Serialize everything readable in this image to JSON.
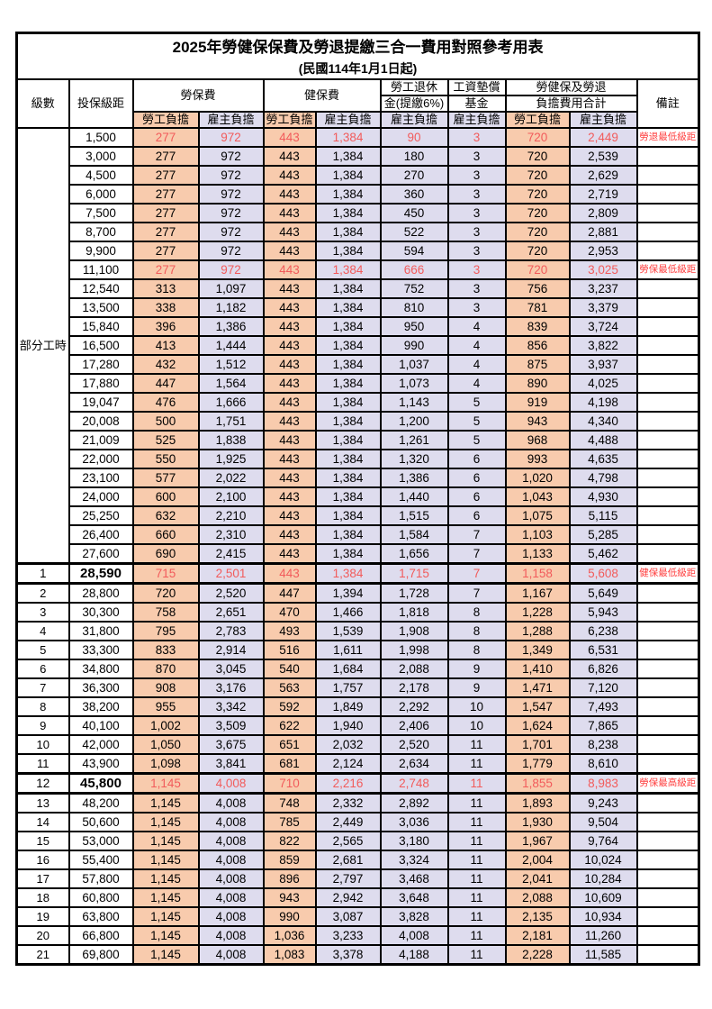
{
  "title": "2025年勞健保保費及勞退提繳三合一費用對照參考用表",
  "subtitle": "(民國114年1月1日起)",
  "header": {
    "level": "級數",
    "bracket": "投保級距",
    "labor_fee": "勞保費",
    "health_fee": "健保費",
    "pension_line1": "勞工退休",
    "pension_line2": "金(提繳6%)",
    "wage_fund_line1": "工資墊償",
    "wage_fund_line2": "基金",
    "total_line1": "勞健保及勞退",
    "total_line2": "負擔費用合計",
    "remark": "備註",
    "employee_share": "勞工負擔",
    "employer_share": "雇主負擔"
  },
  "part_time_label": "部分工時",
  "part_time_span": 23,
  "colors": {
    "employee_bg": "#F8CBAD",
    "employer_bg": "#DEDCEE",
    "value_red": "#F25B5B",
    "remark_red": "#FF4040",
    "text": "#000000"
  },
  "chart_data": {
    "type": "table",
    "title": "2025年勞健保保費及勞退提繳三合一費用對照參考用表",
    "columns": [
      "級數",
      "投保級距",
      "勞保費-勞工負擔",
      "勞保費-雇主負擔",
      "健保費-勞工負擔",
      "健保費-雇主負擔",
      "勞工退休金(提繳6%)-雇主負擔",
      "工資墊償基金-雇主負擔",
      "合計-勞工負擔",
      "合計-雇主負擔",
      "備註"
    ]
  },
  "rows": [
    {
      "level": "",
      "bracket": "1,500",
      "values": [
        "277",
        "972",
        "443",
        "1,384",
        "90",
        "3",
        "720",
        "2,449"
      ],
      "remark": "勞退最低級距",
      "red": true
    },
    {
      "level": "",
      "bracket": "3,000",
      "values": [
        "277",
        "972",
        "443",
        "1,384",
        "180",
        "3",
        "720",
        "2,539"
      ],
      "remark": ""
    },
    {
      "level": "",
      "bracket": "4,500",
      "values": [
        "277",
        "972",
        "443",
        "1,384",
        "270",
        "3",
        "720",
        "2,629"
      ],
      "remark": ""
    },
    {
      "level": "",
      "bracket": "6,000",
      "values": [
        "277",
        "972",
        "443",
        "1,384",
        "360",
        "3",
        "720",
        "2,719"
      ],
      "remark": ""
    },
    {
      "level": "",
      "bracket": "7,500",
      "values": [
        "277",
        "972",
        "443",
        "1,384",
        "450",
        "3",
        "720",
        "2,809"
      ],
      "remark": ""
    },
    {
      "level": "",
      "bracket": "8,700",
      "values": [
        "277",
        "972",
        "443",
        "1,384",
        "522",
        "3",
        "720",
        "2,881"
      ],
      "remark": ""
    },
    {
      "level": "",
      "bracket": "9,900",
      "values": [
        "277",
        "972",
        "443",
        "1,384",
        "594",
        "3",
        "720",
        "2,953"
      ],
      "remark": ""
    },
    {
      "level": "",
      "bracket": "11,100",
      "values": [
        "277",
        "972",
        "443",
        "1,384",
        "666",
        "3",
        "720",
        "3,025"
      ],
      "remark": "勞保最低級距",
      "red": true
    },
    {
      "level": "",
      "bracket": "12,540",
      "values": [
        "313",
        "1,097",
        "443",
        "1,384",
        "752",
        "3",
        "756",
        "3,237"
      ],
      "remark": ""
    },
    {
      "level": "",
      "bracket": "13,500",
      "values": [
        "338",
        "1,182",
        "443",
        "1,384",
        "810",
        "3",
        "781",
        "3,379"
      ],
      "remark": ""
    },
    {
      "level": "",
      "bracket": "15,840",
      "values": [
        "396",
        "1,386",
        "443",
        "1,384",
        "950",
        "4",
        "839",
        "3,724"
      ],
      "remark": ""
    },
    {
      "level": "",
      "bracket": "16,500",
      "values": [
        "413",
        "1,444",
        "443",
        "1,384",
        "990",
        "4",
        "856",
        "3,822"
      ],
      "remark": ""
    },
    {
      "level": "",
      "bracket": "17,280",
      "values": [
        "432",
        "1,512",
        "443",
        "1,384",
        "1,037",
        "4",
        "875",
        "3,937"
      ],
      "remark": ""
    },
    {
      "level": "",
      "bracket": "17,880",
      "values": [
        "447",
        "1,564",
        "443",
        "1,384",
        "1,073",
        "4",
        "890",
        "4,025"
      ],
      "remark": ""
    },
    {
      "level": "",
      "bracket": "19,047",
      "values": [
        "476",
        "1,666",
        "443",
        "1,384",
        "1,143",
        "5",
        "919",
        "4,198"
      ],
      "remark": ""
    },
    {
      "level": "",
      "bracket": "20,008",
      "values": [
        "500",
        "1,751",
        "443",
        "1,384",
        "1,200",
        "5",
        "943",
        "4,340"
      ],
      "remark": ""
    },
    {
      "level": "",
      "bracket": "21,009",
      "values": [
        "525",
        "1,838",
        "443",
        "1,384",
        "1,261",
        "5",
        "968",
        "4,488"
      ],
      "remark": ""
    },
    {
      "level": "",
      "bracket": "22,000",
      "values": [
        "550",
        "1,925",
        "443",
        "1,384",
        "1,320",
        "6",
        "993",
        "4,635"
      ],
      "remark": ""
    },
    {
      "level": "",
      "bracket": "23,100",
      "values": [
        "577",
        "2,022",
        "443",
        "1,384",
        "1,386",
        "6",
        "1,020",
        "4,798"
      ],
      "remark": ""
    },
    {
      "level": "",
      "bracket": "24,000",
      "values": [
        "600",
        "2,100",
        "443",
        "1,384",
        "1,440",
        "6",
        "1,043",
        "4,930"
      ],
      "remark": ""
    },
    {
      "level": "",
      "bracket": "25,250",
      "values": [
        "632",
        "2,210",
        "443",
        "1,384",
        "1,515",
        "6",
        "1,075",
        "5,115"
      ],
      "remark": ""
    },
    {
      "level": "",
      "bracket": "26,400",
      "values": [
        "660",
        "2,310",
        "443",
        "1,384",
        "1,584",
        "7",
        "1,103",
        "5,285"
      ],
      "remark": ""
    },
    {
      "level": "",
      "bracket": "27,600",
      "values": [
        "690",
        "2,415",
        "443",
        "1,384",
        "1,656",
        "7",
        "1,133",
        "5,462"
      ],
      "remark": ""
    },
    {
      "level": "1",
      "bracket": "28,590",
      "values": [
        "715",
        "2,501",
        "443",
        "1,384",
        "1,715",
        "7",
        "1,158",
        "5,608"
      ],
      "remark": "健保最低級距",
      "red": true,
      "emph": true
    },
    {
      "level": "2",
      "bracket": "28,800",
      "values": [
        "720",
        "2,520",
        "447",
        "1,394",
        "1,728",
        "7",
        "1,167",
        "5,649"
      ],
      "remark": ""
    },
    {
      "level": "3",
      "bracket": "30,300",
      "values": [
        "758",
        "2,651",
        "470",
        "1,466",
        "1,818",
        "8",
        "1,228",
        "5,943"
      ],
      "remark": ""
    },
    {
      "level": "4",
      "bracket": "31,800",
      "values": [
        "795",
        "2,783",
        "493",
        "1,539",
        "1,908",
        "8",
        "1,288",
        "6,238"
      ],
      "remark": ""
    },
    {
      "level": "5",
      "bracket": "33,300",
      "values": [
        "833",
        "2,914",
        "516",
        "1,611",
        "1,998",
        "8",
        "1,349",
        "6,531"
      ],
      "remark": ""
    },
    {
      "level": "6",
      "bracket": "34,800",
      "values": [
        "870",
        "3,045",
        "540",
        "1,684",
        "2,088",
        "9",
        "1,410",
        "6,826"
      ],
      "remark": ""
    },
    {
      "level": "7",
      "bracket": "36,300",
      "values": [
        "908",
        "3,176",
        "563",
        "1,757",
        "2,178",
        "9",
        "1,471",
        "7,120"
      ],
      "remark": ""
    },
    {
      "level": "8",
      "bracket": "38,200",
      "values": [
        "955",
        "3,342",
        "592",
        "1,849",
        "2,292",
        "10",
        "1,547",
        "7,493"
      ],
      "remark": ""
    },
    {
      "level": "9",
      "bracket": "40,100",
      "values": [
        "1,002",
        "3,509",
        "622",
        "1,940",
        "2,406",
        "10",
        "1,624",
        "7,865"
      ],
      "remark": ""
    },
    {
      "level": "10",
      "bracket": "42,000",
      "values": [
        "1,050",
        "3,675",
        "651",
        "2,032",
        "2,520",
        "11",
        "1,701",
        "8,238"
      ],
      "remark": ""
    },
    {
      "level": "11",
      "bracket": "43,900",
      "values": [
        "1,098",
        "3,841",
        "681",
        "2,124",
        "2,634",
        "11",
        "1,779",
        "8,610"
      ],
      "remark": ""
    },
    {
      "level": "12",
      "bracket": "45,800",
      "values": [
        "1,145",
        "4,008",
        "710",
        "2,216",
        "2,748",
        "11",
        "1,855",
        "8,983"
      ],
      "remark": "勞保最高級距",
      "red": true,
      "emph": true
    },
    {
      "level": "13",
      "bracket": "48,200",
      "values": [
        "1,145",
        "4,008",
        "748",
        "2,332",
        "2,892",
        "11",
        "1,893",
        "9,243"
      ],
      "remark": ""
    },
    {
      "level": "14",
      "bracket": "50,600",
      "values": [
        "1,145",
        "4,008",
        "785",
        "2,449",
        "3,036",
        "11",
        "1,930",
        "9,504"
      ],
      "remark": ""
    },
    {
      "level": "15",
      "bracket": "53,000",
      "values": [
        "1,145",
        "4,008",
        "822",
        "2,565",
        "3,180",
        "11",
        "1,967",
        "9,764"
      ],
      "remark": ""
    },
    {
      "level": "16",
      "bracket": "55,400",
      "values": [
        "1,145",
        "4,008",
        "859",
        "2,681",
        "3,324",
        "11",
        "2,004",
        "10,024"
      ],
      "remark": ""
    },
    {
      "level": "17",
      "bracket": "57,800",
      "values": [
        "1,145",
        "4,008",
        "896",
        "2,797",
        "3,468",
        "11",
        "2,041",
        "10,284"
      ],
      "remark": ""
    },
    {
      "level": "18",
      "bracket": "60,800",
      "values": [
        "1,145",
        "4,008",
        "943",
        "2,942",
        "3,648",
        "11",
        "2,088",
        "10,609"
      ],
      "remark": ""
    },
    {
      "level": "19",
      "bracket": "63,800",
      "values": [
        "1,145",
        "4,008",
        "990",
        "3,087",
        "3,828",
        "11",
        "2,135",
        "10,934"
      ],
      "remark": ""
    },
    {
      "level": "20",
      "bracket": "66,800",
      "values": [
        "1,145",
        "4,008",
        "1,036",
        "3,233",
        "4,008",
        "11",
        "2,181",
        "11,260"
      ],
      "remark": ""
    },
    {
      "level": "21",
      "bracket": "69,800",
      "values": [
        "1,145",
        "4,008",
        "1,083",
        "3,378",
        "4,188",
        "11",
        "2,228",
        "11,585"
      ],
      "remark": ""
    }
  ]
}
